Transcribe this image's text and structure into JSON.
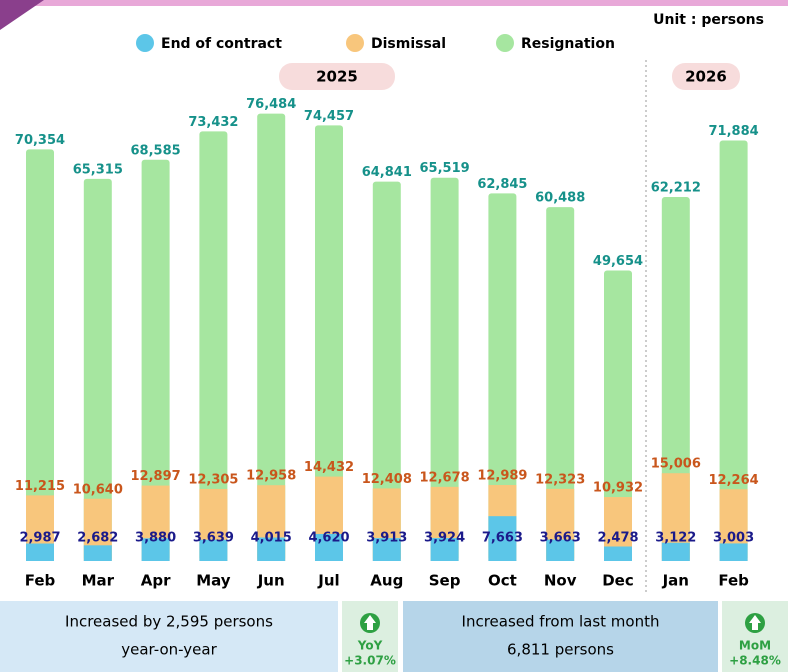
{
  "chart_data": {
    "type": "bar",
    "unit": "Unit : persons",
    "categories": [
      "Feb",
      "Mar",
      "Apr",
      "May",
      "Jun",
      "Jul",
      "Aug",
      "Sep",
      "Oct",
      "Nov",
      "Dec",
      "Jan",
      "Feb"
    ],
    "year_groups": [
      {
        "label": "2025",
        "from": 0,
        "to": 10
      },
      {
        "label": "2026",
        "from": 11,
        "to": 12
      }
    ],
    "series": [
      {
        "name": "Resignation",
        "color": "#a6e6a0",
        "values": [
          70354,
          65315,
          68585,
          73432,
          76484,
          74457,
          64841,
          65519,
          62845,
          60488,
          49654,
          62212,
          71884
        ],
        "value_labels": [
          "70,354",
          "65,315",
          "68,585",
          "73,432",
          "76,484",
          "74,457",
          "64,841",
          "65,519",
          "62,845",
          "60,488",
          "49,654",
          "62,212",
          "71,884"
        ],
        "label_color": "#16918a"
      },
      {
        "name": "Dismissal",
        "color": "#f8c67c",
        "values": [
          11215,
          10640,
          12897,
          12305,
          12958,
          14432,
          12408,
          12678,
          12989,
          12323,
          10932,
          15006,
          12264
        ],
        "value_labels": [
          "11,215",
          "10,640",
          "12,897",
          "12,305",
          "12,958",
          "14,432",
          "12,408",
          "12,678",
          "12,989",
          "12,323",
          "10,932",
          "15,006",
          "12,264"
        ],
        "label_color": "#c9561c"
      },
      {
        "name": "End of contract",
        "color": "#5cc6e8",
        "values": [
          2987,
          2682,
          3880,
          3639,
          4015,
          4620,
          3913,
          3924,
          7663,
          3663,
          2478,
          3122,
          3003
        ],
        "value_labels": [
          "2,987",
          "2,682",
          "3,880",
          "3,639",
          "4,015",
          "4,620",
          "3,913",
          "3,924",
          "7,663",
          "3,663",
          "2,478",
          "3,122",
          "3,003"
        ],
        "label_color": "#1b1a8a"
      }
    ]
  },
  "summary": [
    {
      "text": [
        "Increased by 2,595 persons",
        "year-on-year"
      ],
      "badge": "YoY",
      "change": "+3.07%"
    },
    {
      "text": [
        "Increased from last month",
        "6,811 persons"
      ],
      "badge": "MoM",
      "change": "+8.48%"
    }
  ]
}
